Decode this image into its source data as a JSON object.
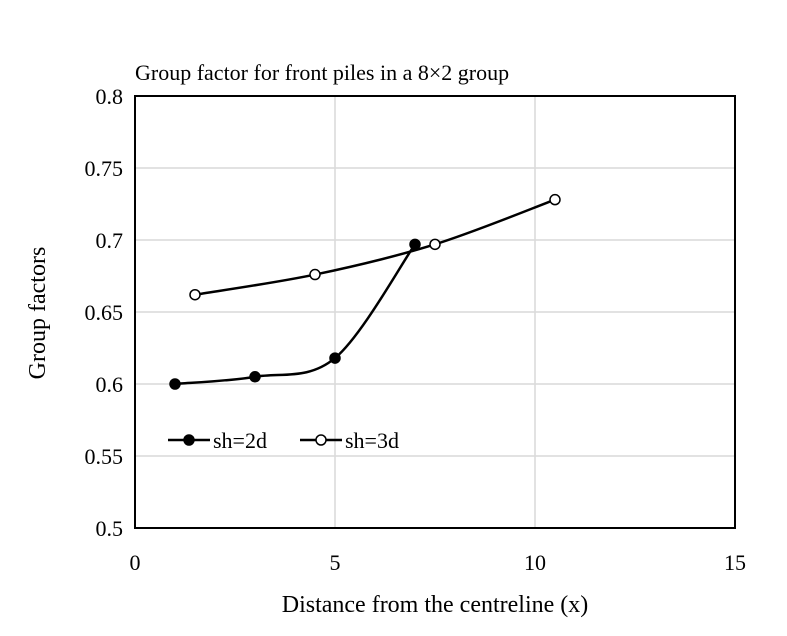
{
  "chart_data": {
    "type": "scatter",
    "title": "Group factor for front piles in a 8×2 group",
    "xlabel": "Distance from the centreline (x)",
    "ylabel": "Group factors",
    "xlim": [
      0,
      15
    ],
    "ylim": [
      0.5,
      0.8
    ],
    "x_ticks": [
      "0",
      "5",
      "10",
      "15"
    ],
    "y_ticks": [
      "0.5",
      "0.55",
      "0.6",
      "0.65",
      "0.7",
      "0.75",
      "0.8"
    ],
    "grid": true,
    "legend_position": "inside-lower-left",
    "series": [
      {
        "name": "sh=2d",
        "marker": "filled-circle",
        "color": "#000000",
        "x": [
          1,
          3,
          5,
          7
        ],
        "y": [
          0.6,
          0.605,
          0.618,
          0.697
        ]
      },
      {
        "name": "sh=3d",
        "marker": "open-circle",
        "color": "#000000",
        "x": [
          1.5,
          4.5,
          7.5,
          10.5
        ],
        "y": [
          0.662,
          0.676,
          0.697,
          0.728
        ]
      }
    ]
  }
}
